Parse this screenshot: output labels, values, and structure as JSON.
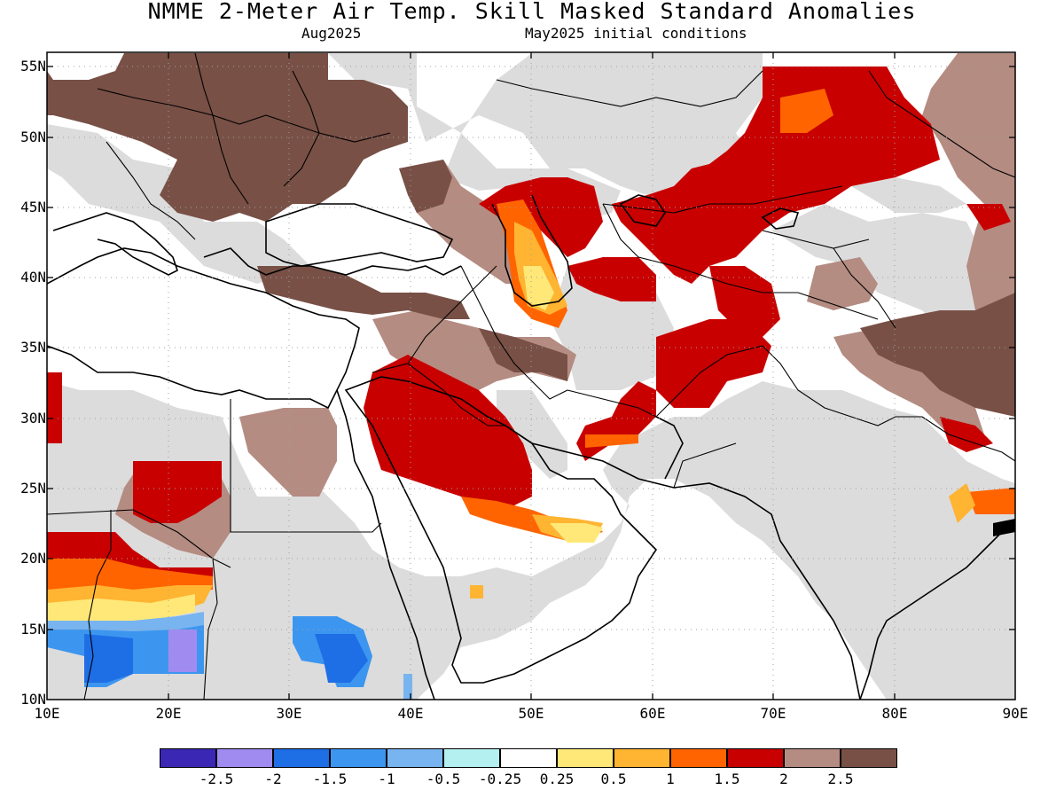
{
  "title": "NMME 2-Meter Air Temp. Skill Masked Standard Anomalies",
  "subtitle_left": "Aug2025",
  "subtitle_right": "May2025 initial conditions",
  "lat_labels": [
    "55N",
    "50N",
    "45N",
    "40N",
    "35N",
    "30N",
    "25N",
    "20N",
    "15N",
    "10N"
  ],
  "lon_labels": [
    "10E",
    "20E",
    "30E",
    "40E",
    "50E",
    "60E",
    "70E",
    "80E",
    "90E"
  ],
  "legend": {
    "colors": [
      "#3a28b4",
      "#a08cf0",
      "#1e6ee6",
      "#3c96f0",
      "#78b4f0",
      "#b4f0f0",
      "#ffffff",
      "#ffe878",
      "#ffb432",
      "#ff6400",
      "#c80000",
      "#b48c82",
      "#785046"
    ],
    "labels": [
      "-2.5",
      "-2",
      "-1.5",
      "-1",
      "-0.5",
      "-0.25",
      "0.25",
      "0.5",
      "1",
      "1.5",
      "2",
      "2.5"
    ]
  },
  "colors": {
    "no_skill": "#dcdcdc",
    "ocean": "#ffffff",
    "coastline": "#000000",
    "grid": "#a0a0a0"
  }
}
